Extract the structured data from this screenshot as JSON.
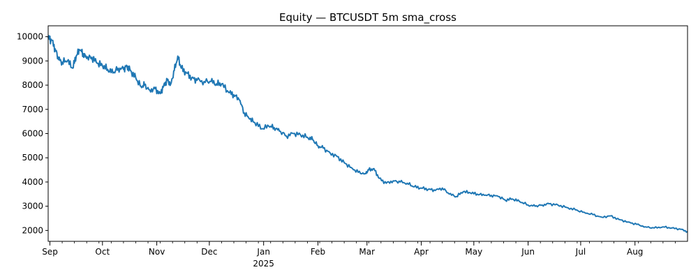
{
  "chart_data": {
    "type": "line",
    "title": "Equity — BTCUSDT 5m sma_cross",
    "xlabel": "",
    "ylabel": "",
    "x_range": [
      "2024-08-31",
      "2025-08-31"
    ],
    "ylim": [
      1550,
      10450
    ],
    "yticks": [
      2000,
      3000,
      4000,
      5000,
      6000,
      7000,
      8000,
      9000,
      10000
    ],
    "xticks": [
      {
        "date": "2024-09-01",
        "label": "Sep",
        "sublabel": ""
      },
      {
        "date": "2024-10-01",
        "label": "Oct",
        "sublabel": ""
      },
      {
        "date": "2024-11-01",
        "label": "Nov",
        "sublabel": ""
      },
      {
        "date": "2024-12-01",
        "label": "Dec",
        "sublabel": ""
      },
      {
        "date": "2025-01-01",
        "label": "Jan",
        "sublabel": "2025"
      },
      {
        "date": "2025-02-01",
        "label": "Feb",
        "sublabel": ""
      },
      {
        "date": "2025-03-01",
        "label": "Mar",
        "sublabel": ""
      },
      {
        "date": "2025-04-01",
        "label": "Apr",
        "sublabel": ""
      },
      {
        "date": "2025-05-01",
        "label": "May",
        "sublabel": ""
      },
      {
        "date": "2025-06-01",
        "label": "Jun",
        "sublabel": ""
      },
      {
        "date": "2025-07-01",
        "label": "Jul",
        "sublabel": ""
      },
      {
        "date": "2025-08-01",
        "label": "Aug",
        "sublabel": ""
      }
    ],
    "grid": false,
    "legend": "none",
    "line_color": "#1f77b4",
    "series": [
      {
        "x": [
          "2024-08-31",
          "2024-09-02",
          "2024-09-04",
          "2024-09-06",
          "2024-09-08",
          "2024-09-11",
          "2024-09-14",
          "2024-09-16",
          "2024-09-18",
          "2024-09-20",
          "2024-09-22",
          "2024-09-25",
          "2024-09-28",
          "2024-10-01",
          "2024-10-04",
          "2024-10-07",
          "2024-10-10",
          "2024-10-13",
          "2024-10-15",
          "2024-10-17",
          "2024-10-20",
          "2024-10-23",
          "2024-10-25",
          "2024-10-28",
          "2024-10-31",
          "2024-11-03",
          "2024-11-05",
          "2024-11-07",
          "2024-11-09",
          "2024-11-11",
          "2024-11-13",
          "2024-11-15",
          "2024-11-18",
          "2024-11-21",
          "2024-11-24",
          "2024-11-28",
          "2024-12-02",
          "2024-12-05",
          "2024-12-08",
          "2024-12-12",
          "2024-12-15",
          "2024-12-18",
          "2024-12-21",
          "2024-12-24",
          "2024-12-27",
          "2024-12-31",
          "2025-01-04",
          "2025-01-07",
          "2025-01-10",
          "2025-01-14",
          "2025-01-18",
          "2025-01-22",
          "2025-01-26",
          "2025-01-29",
          "2025-02-01",
          "2025-02-04",
          "2025-02-08",
          "2025-02-12",
          "2025-02-16",
          "2025-02-20",
          "2025-02-24",
          "2025-02-28",
          "2025-03-02",
          "2025-03-05",
          "2025-03-08",
          "2025-03-12",
          "2025-03-16",
          "2025-03-20",
          "2025-03-24",
          "2025-03-28",
          "2025-04-01",
          "2025-04-05",
          "2025-04-09",
          "2025-04-13",
          "2025-04-17",
          "2025-04-21",
          "2025-04-25",
          "2025-04-29",
          "2025-05-03",
          "2025-05-07",
          "2025-05-11",
          "2025-05-15",
          "2025-05-19",
          "2025-05-23",
          "2025-05-27",
          "2025-06-01",
          "2025-06-05",
          "2025-06-09",
          "2025-06-13",
          "2025-06-18",
          "2025-06-23",
          "2025-06-28",
          "2025-07-03",
          "2025-07-08",
          "2025-07-13",
          "2025-07-18",
          "2025-07-23",
          "2025-07-28",
          "2025-08-02",
          "2025-08-07",
          "2025-08-12",
          "2025-08-17",
          "2025-08-22",
          "2025-08-27",
          "2025-08-31"
        ],
        "y": [
          9950,
          9850,
          9500,
          9050,
          8950,
          9000,
          8700,
          9200,
          9450,
          9300,
          9100,
          9150,
          8900,
          8800,
          8650,
          8500,
          8700,
          8650,
          8800,
          8600,
          8300,
          7950,
          8000,
          7800,
          7850,
          7650,
          8000,
          8200,
          8050,
          8600,
          9200,
          8700,
          8500,
          8300,
          8200,
          8150,
          8150,
          8050,
          8050,
          7700,
          7600,
          7400,
          6850,
          6600,
          6450,
          6200,
          6300,
          6250,
          6100,
          5900,
          6000,
          5950,
          5850,
          5750,
          5500,
          5400,
          5200,
          5050,
          4800,
          4600,
          4400,
          4350,
          4500,
          4550,
          4150,
          3950,
          4050,
          4000,
          3950,
          3800,
          3750,
          3700,
          3650,
          3750,
          3500,
          3400,
          3600,
          3550,
          3500,
          3450,
          3450,
          3400,
          3250,
          3300,
          3200,
          3050,
          3000,
          3050,
          3100,
          3050,
          2950,
          2850,
          2750,
          2650,
          2550,
          2600,
          2450,
          2350,
          2250,
          2150,
          2100,
          2150,
          2100,
          2050,
          1950
        ]
      }
    ]
  }
}
